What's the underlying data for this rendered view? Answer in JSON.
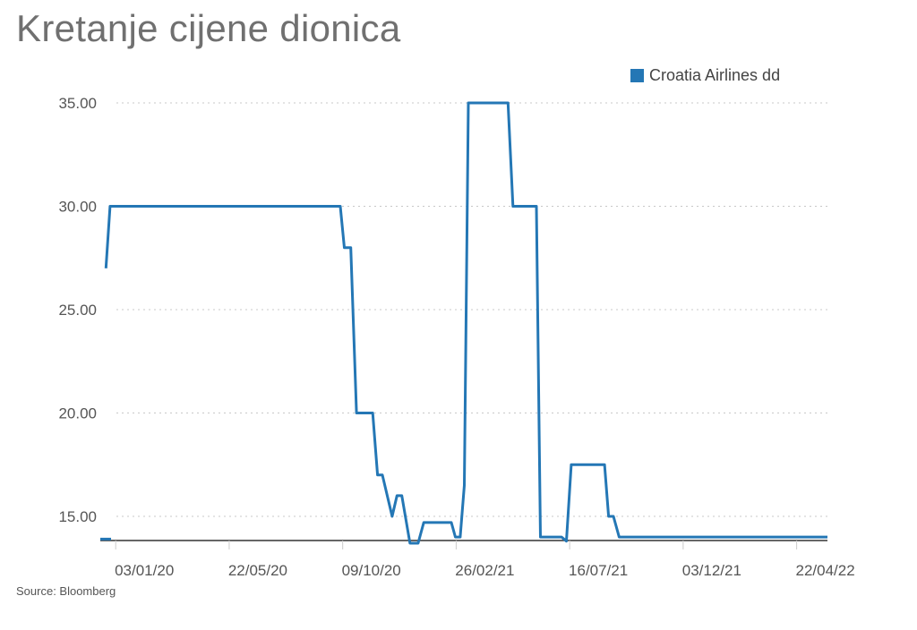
{
  "title": "Kretanje cijene dionica",
  "source": "Source: Bloomberg",
  "colors": {
    "series": "#2477b5"
  },
  "chart_data": {
    "type": "line",
    "title": "Kretanje cijene dionica",
    "xlabel": "",
    "ylabel": "",
    "ylim": [
      13.8,
      35.5
    ],
    "grid": true,
    "legend_position": "top-right",
    "y_ticks": [
      "35.00",
      "30.00",
      "25.00",
      "20.00",
      "15.00"
    ],
    "y_tick_values": [
      35,
      30,
      25,
      20,
      15
    ],
    "x_ticks": [
      "03/01/20",
      "22/05/20",
      "09/10/20",
      "26/02/21",
      "16/07/21",
      "03/12/21",
      "22/04/22"
    ],
    "x_tick_values": [
      "2020-01-03",
      "2020-05-22",
      "2020-10-09",
      "2021-02-26",
      "2021-07-16",
      "2021-12-03",
      "2022-04-22"
    ],
    "x_range": [
      "2019-12-15",
      "2022-05-30"
    ],
    "series": [
      {
        "name": "Croatia Airlines dd",
        "points": [
          [
            "2019-12-22",
            27.0
          ],
          [
            "2019-12-27",
            30.0
          ],
          [
            "2020-10-06",
            30.0
          ],
          [
            "2020-10-11",
            28.0
          ],
          [
            "2020-10-19",
            28.0
          ],
          [
            "2020-10-26",
            20.0
          ],
          [
            "2020-11-15",
            20.0
          ],
          [
            "2020-11-21",
            17.0
          ],
          [
            "2020-11-27",
            17.0
          ],
          [
            "2020-12-09",
            15.0
          ],
          [
            "2020-12-15",
            16.0
          ],
          [
            "2020-12-21",
            16.0
          ],
          [
            "2020-12-31",
            13.7
          ],
          [
            "2021-01-10",
            13.7
          ],
          [
            "2021-01-17",
            14.7
          ],
          [
            "2021-02-20",
            14.7
          ],
          [
            "2021-02-25",
            14.0
          ],
          [
            "2021-03-03",
            14.0
          ],
          [
            "2021-03-08",
            16.5
          ],
          [
            "2021-03-13",
            35.0
          ],
          [
            "2021-05-01",
            35.0
          ],
          [
            "2021-05-07",
            30.0
          ],
          [
            "2021-06-05",
            30.0
          ],
          [
            "2021-06-10",
            14.0
          ],
          [
            "2021-07-06",
            14.0
          ],
          [
            "2021-07-12",
            13.8
          ],
          [
            "2021-07-18",
            17.5
          ],
          [
            "2021-08-28",
            17.5
          ],
          [
            "2021-09-02",
            15.0
          ],
          [
            "2021-09-08",
            15.0
          ],
          [
            "2021-09-15",
            14.0
          ],
          [
            "2022-05-30",
            14.0
          ]
        ]
      }
    ]
  }
}
